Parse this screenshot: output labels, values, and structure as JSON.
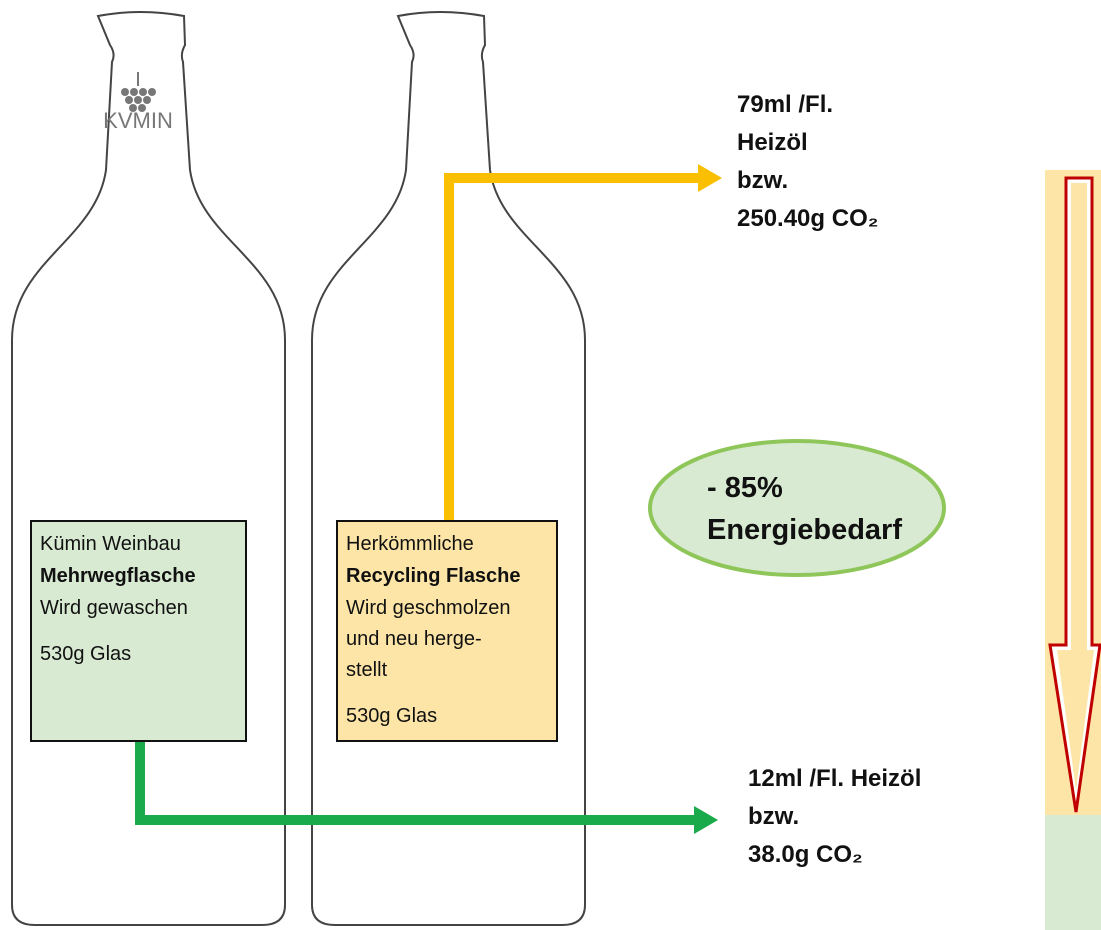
{
  "logo": "KVMIN",
  "reusable_box": {
    "lines": [
      "Kümin Weinbau",
      "Mehrwegflasche",
      "Wird gewaschen",
      "530g Glas"
    ]
  },
  "recycling_box": {
    "lines": [
      "Herkömmliche",
      "Recycling Flasche",
      "Wird geschmolzen",
      "und neu herge-",
      "stellt",
      "530g Glas"
    ]
  },
  "recycling_result": {
    "lines": [
      "79ml /Fl.",
      "Heizöl",
      "bzw.",
      "250.40g CO₂"
    ]
  },
  "reusable_result": {
    "lines": [
      "12ml /Fl. Heizöl",
      "bzw.",
      "38.0g CO₂"
    ]
  },
  "savings": {
    "lines": [
      "- 85%",
      "Energiebedarf"
    ]
  }
}
